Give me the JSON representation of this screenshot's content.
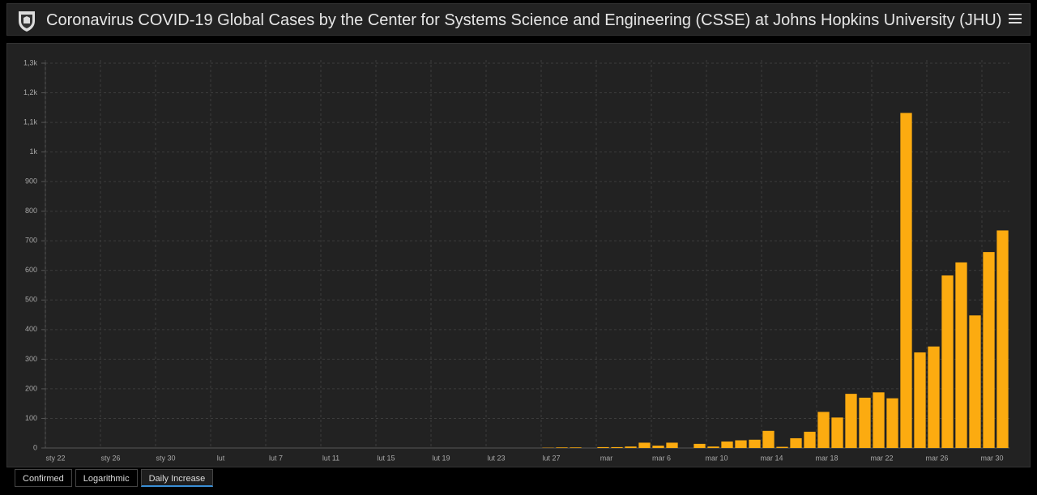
{
  "header": {
    "title": "Coronavirus COVID-19 Global Cases by the Center for Systems Science and Engineering (CSSE) at Johns Hopkins University (JHU)"
  },
  "chart_data": {
    "type": "bar",
    "color": "#fcab10",
    "grid": true,
    "categories": [
      "sty 22",
      null,
      null,
      null,
      "sty 26",
      null,
      null,
      null,
      "sty 30",
      null,
      null,
      null,
      "lut",
      null,
      null,
      null,
      "lut 7",
      null,
      null,
      null,
      "lut 11",
      null,
      null,
      null,
      "lut 15",
      null,
      null,
      null,
      "lut 19",
      null,
      null,
      null,
      "lut 23",
      null,
      null,
      null,
      "lut 27",
      null,
      null,
      null,
      "mar",
      null,
      null,
      null,
      "mar 6",
      null,
      null,
      null,
      "mar 10",
      null,
      null,
      null,
      "mar 14",
      null,
      null,
      null,
      "mar 18",
      null,
      null,
      null,
      "mar 22",
      null,
      null,
      null,
      "mar 26",
      null,
      null,
      null,
      "mar 30",
      null
    ],
    "values": [
      0,
      0,
      0,
      0,
      0,
      0,
      0,
      0,
      0,
      0,
      0,
      0,
      0,
      0,
      0,
      0,
      0,
      0,
      0,
      0,
      0,
      0,
      0,
      0,
      0,
      0,
      0,
      0,
      0,
      0,
      0,
      0,
      0,
      0,
      0,
      0,
      1,
      2,
      2,
      0,
      3,
      3,
      5,
      18,
      8,
      18,
      0,
      14,
      5,
      22,
      26,
      28,
      58,
      4,
      33,
      55,
      122,
      103,
      183,
      170,
      188,
      168,
      1132,
      323,
      343,
      583,
      627,
      448,
      662,
      735
    ],
    "ylim": [
      0,
      1300
    ],
    "yticks": [
      0,
      100,
      200,
      300,
      400,
      500,
      600,
      700,
      800,
      900,
      {
        "value": 1000,
        "label": "1k"
      },
      {
        "value": 1100,
        "label": "1,1k"
      },
      {
        "value": 1200,
        "label": "1,2k"
      },
      {
        "value": 1300,
        "label": "1,3k"
      }
    ]
  },
  "tabs": [
    "Confirmed",
    "Logarithmic",
    "Daily Increase"
  ]
}
